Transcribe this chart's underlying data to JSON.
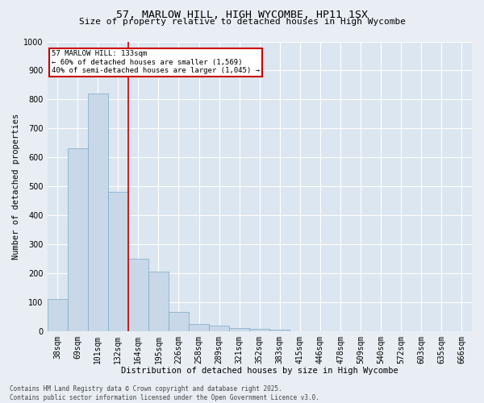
{
  "title_line1": "57, MARLOW HILL, HIGH WYCOMBE, HP11 1SX",
  "title_line2": "Size of property relative to detached houses in High Wycombe",
  "xlabel": "Distribution of detached houses by size in High Wycombe",
  "ylabel": "Number of detached properties",
  "categories": [
    "38sqm",
    "69sqm",
    "101sqm",
    "132sqm",
    "164sqm",
    "195sqm",
    "226sqm",
    "258sqm",
    "289sqm",
    "321sqm",
    "352sqm",
    "383sqm",
    "415sqm",
    "446sqm",
    "478sqm",
    "509sqm",
    "540sqm",
    "572sqm",
    "603sqm",
    "635sqm",
    "666sqm"
  ],
  "values": [
    110,
    630,
    820,
    480,
    250,
    205,
    65,
    25,
    18,
    10,
    7,
    5,
    0,
    0,
    0,
    0,
    0,
    0,
    0,
    0,
    0
  ],
  "bar_color": "#c8d8e8",
  "bar_edge_color": "#7aaac8",
  "marker_index": 3,
  "marker_color": "#cc0000",
  "ylim": [
    0,
    1000
  ],
  "yticks": [
    0,
    100,
    200,
    300,
    400,
    500,
    600,
    700,
    800,
    900,
    1000
  ],
  "annotation_title": "57 MARLOW HILL: 133sqm",
  "annotation_line1": "← 60% of detached houses are smaller (1,569)",
  "annotation_line2": "40% of semi-detached houses are larger (1,045) →",
  "annotation_box_color": "#cc0000",
  "footer_line1": "Contains HM Land Registry data © Crown copyright and database right 2025.",
  "footer_line2": "Contains public sector information licensed under the Open Government Licence v3.0.",
  "background_color": "#e8eef4",
  "plot_bg_color": "#dce6f0",
  "grid_color": "#ffffff",
  "title_fontsize": 9.5,
  "subtitle_fontsize": 8,
  "axis_label_fontsize": 7.5,
  "tick_fontsize": 7,
  "annotation_fontsize": 6.5,
  "footer_fontsize": 5.5
}
